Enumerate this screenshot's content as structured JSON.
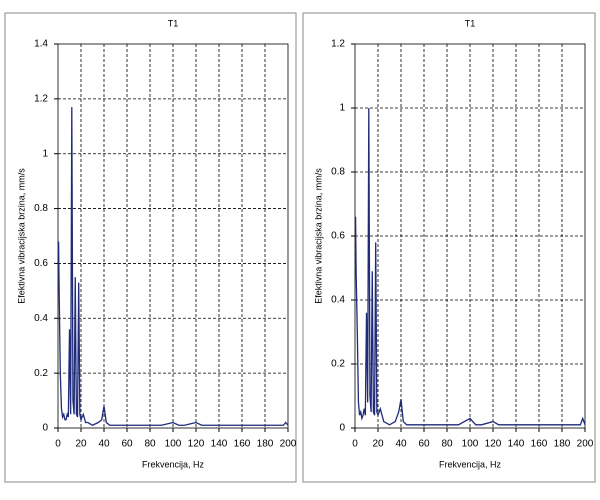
{
  "chart_data": [
    {
      "type": "line",
      "title": "T1",
      "x_label": "Frekvencija, Hz",
      "y_label": "Efektivna vibracijska brzina, mm/s",
      "xlim": [
        0,
        200
      ],
      "ylim": [
        0,
        1.4
      ],
      "xticks": [
        0,
        20,
        40,
        60,
        80,
        100,
        120,
        140,
        160,
        180,
        200
      ],
      "yticks": [
        0,
        0.2,
        0.4,
        0.6,
        0.8,
        1,
        1.2,
        1.4
      ],
      "grid": true,
      "color": "#1f2a78",
      "x": [
        0.5,
        1,
        2,
        3,
        4,
        5,
        6,
        7,
        8,
        9,
        10,
        11,
        12,
        13,
        14,
        15,
        16,
        17,
        18,
        19,
        20,
        22,
        24,
        26,
        30,
        35,
        38,
        40,
        42,
        45,
        50,
        60,
        70,
        80,
        90,
        100,
        105,
        110,
        120,
        125,
        130,
        140,
        150,
        160,
        170,
        180,
        190,
        196,
        198,
        200
      ],
      "values": [
        0.68,
        0.5,
        0.2,
        0.07,
        0.04,
        0.05,
        0.03,
        0.03,
        0.05,
        0.04,
        0.36,
        0.05,
        1.17,
        0.1,
        0.05,
        0.55,
        0.05,
        0.04,
        0.53,
        0.05,
        0.03,
        0.05,
        0.02,
        0.02,
        0.01,
        0.02,
        0.03,
        0.08,
        0.02,
        0.01,
        0.01,
        0.01,
        0.01,
        0.01,
        0.01,
        0.02,
        0.01,
        0.01,
        0.02,
        0.01,
        0.01,
        0.01,
        0.01,
        0.01,
        0.01,
        0.01,
        0.01,
        0.01,
        0.02,
        0.01
      ]
    },
    {
      "type": "line",
      "title": "T1",
      "x_label": "Frekvencija, Hz",
      "y_label": "Efektivna vibracijska brzina, mm/s",
      "xlim": [
        0,
        200
      ],
      "ylim": [
        0,
        1.2
      ],
      "xticks": [
        0,
        20,
        40,
        60,
        80,
        100,
        120,
        140,
        160,
        180,
        200
      ],
      "yticks": [
        0,
        0.2,
        0.4,
        0.6,
        0.8,
        1,
        1.2
      ],
      "grid": true,
      "color": "#1f2a78",
      "x": [
        0.5,
        1,
        2,
        3,
        4,
        5,
        6,
        7,
        8,
        9,
        10,
        11,
        12,
        13,
        14,
        15,
        16,
        17,
        18,
        19,
        20,
        22,
        25,
        30,
        35,
        38,
        40,
        42,
        45,
        50,
        60,
        70,
        80,
        90,
        100,
        105,
        110,
        120,
        125,
        130,
        140,
        150,
        160,
        170,
        180,
        190,
        196,
        198,
        200
      ],
      "values": [
        0.66,
        0.48,
        0.3,
        0.08,
        0.04,
        0.05,
        0.03,
        0.04,
        0.06,
        0.04,
        0.36,
        0.08,
        1.0,
        0.1,
        0.05,
        0.49,
        0.05,
        0.04,
        0.58,
        0.05,
        0.04,
        0.06,
        0.02,
        0.01,
        0.02,
        0.05,
        0.09,
        0.02,
        0.01,
        0.01,
        0.01,
        0.01,
        0.01,
        0.01,
        0.03,
        0.01,
        0.01,
        0.02,
        0.01,
        0.01,
        0.01,
        0.01,
        0.01,
        0.01,
        0.01,
        0.01,
        0.01,
        0.03,
        0.01
      ]
    }
  ]
}
